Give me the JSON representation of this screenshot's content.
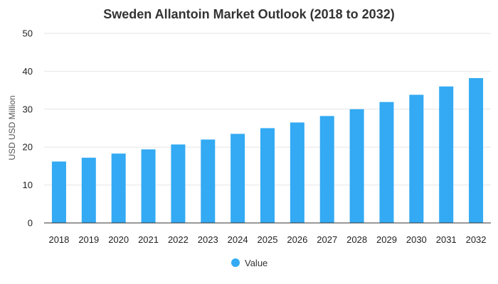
{
  "chart_data": {
    "type": "bar",
    "title": "Sweden Allantoin Market Outlook (2018 to 2032)",
    "xlabel": "",
    "ylabel": "USD USD Million",
    "ylim": [
      0,
      50
    ],
    "yticks": [
      0,
      10,
      20,
      30,
      40,
      50
    ],
    "categories": [
      "2018",
      "2019",
      "2020",
      "2021",
      "2022",
      "2023",
      "2024",
      "2025",
      "2026",
      "2027",
      "2028",
      "2029",
      "2030",
      "2031",
      "2032"
    ],
    "series": [
      {
        "name": "Value",
        "color": "#33aaf3",
        "values": [
          16.2,
          17.2,
          18.3,
          19.4,
          20.7,
          22.0,
          23.5,
          25.0,
          26.5,
          28.2,
          30.0,
          31.9,
          33.8,
          36.0,
          38.2
        ]
      }
    ],
    "grid": true,
    "legend": "bottom-center"
  }
}
